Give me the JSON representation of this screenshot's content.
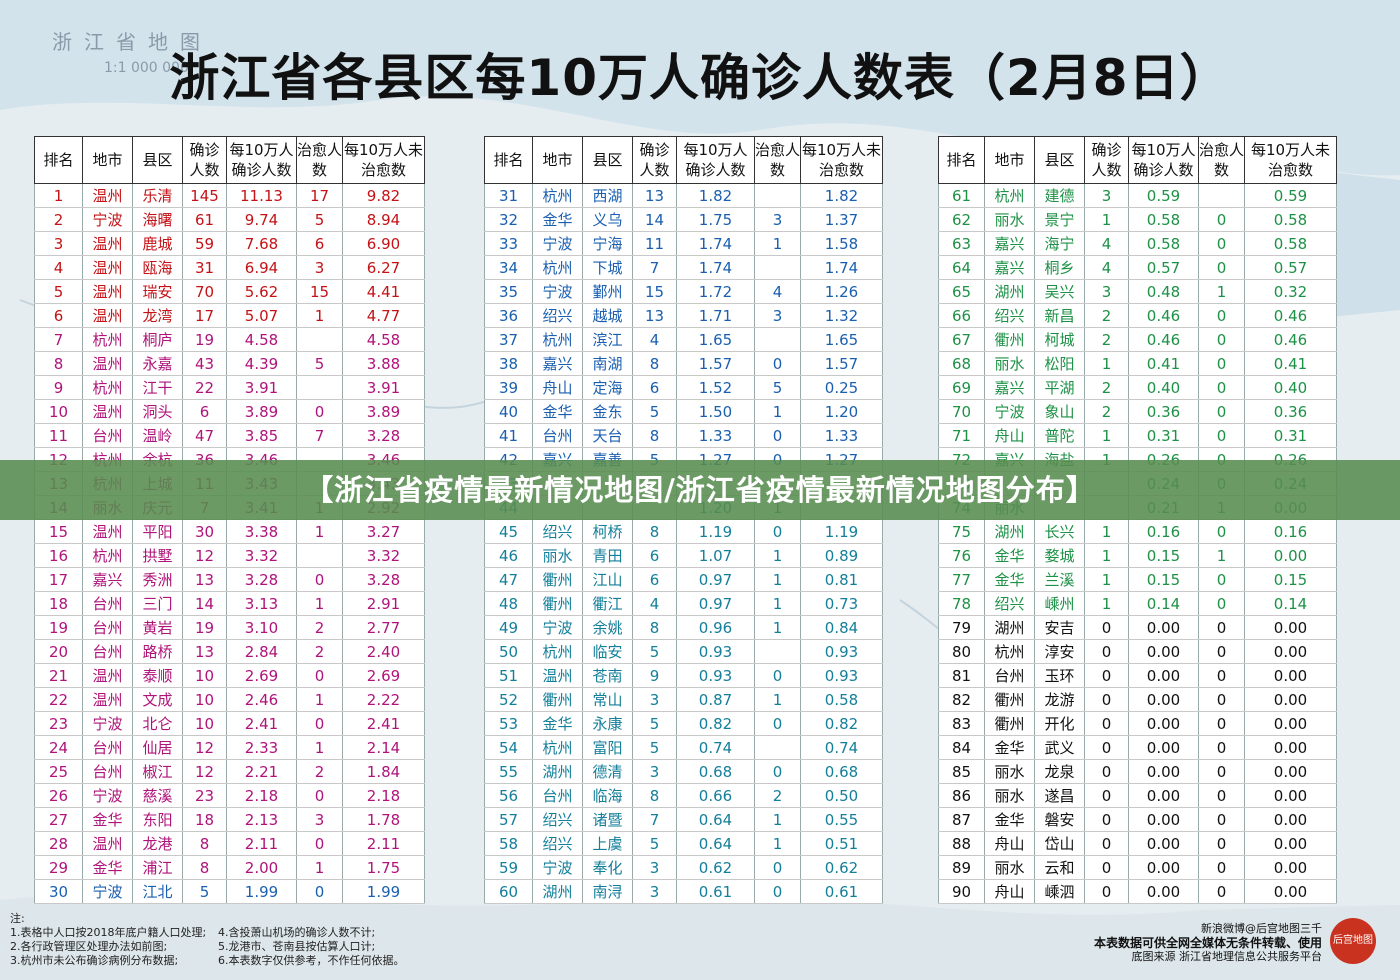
{
  "map": {
    "name": "浙江省地图",
    "scale": "1:1 000 000"
  },
  "title": "浙江省各县区每10万人确诊人数表（2月8日）",
  "headers": [
    "排名",
    "地市",
    "县区",
    "确诊人数",
    "每10万人确诊人数",
    "治愈人数",
    "每10万人未治愈数"
  ],
  "rows": [
    [
      "1",
      "温州",
      "乐清",
      "145",
      "11.13",
      "17",
      "9.82"
    ],
    [
      "2",
      "宁波",
      "海曙",
      "61",
      "9.74",
      "5",
      "8.94"
    ],
    [
      "3",
      "温州",
      "鹿城",
      "59",
      "7.68",
      "6",
      "6.90"
    ],
    [
      "4",
      "温州",
      "瓯海",
      "31",
      "6.94",
      "3",
      "6.27"
    ],
    [
      "5",
      "温州",
      "瑞安",
      "70",
      "5.62",
      "15",
      "4.41"
    ],
    [
      "6",
      "温州",
      "龙湾",
      "17",
      "5.07",
      "1",
      "4.77"
    ],
    [
      "7",
      "杭州",
      "桐庐",
      "19",
      "4.58",
      "",
      "4.58"
    ],
    [
      "8",
      "温州",
      "永嘉",
      "43",
      "4.39",
      "5",
      "3.88"
    ],
    [
      "9",
      "杭州",
      "江干",
      "22",
      "3.91",
      "",
      "3.91"
    ],
    [
      "10",
      "温州",
      "洞头",
      "6",
      "3.89",
      "0",
      "3.89"
    ],
    [
      "11",
      "台州",
      "温岭",
      "47",
      "3.85",
      "7",
      "3.28"
    ],
    [
      "12",
      "杭州",
      "余杭",
      "36",
      "3.46",
      "",
      "3.46"
    ],
    [
      "13",
      "杭州",
      "上城",
      "11",
      "3.43",
      "",
      "3.43"
    ],
    [
      "14",
      "丽水",
      "庆元",
      "7",
      "3.41",
      "1",
      "2.92"
    ],
    [
      "15",
      "温州",
      "平阳",
      "30",
      "3.38",
      "1",
      "3.27"
    ],
    [
      "16",
      "杭州",
      "拱墅",
      "12",
      "3.32",
      "",
      "3.32"
    ],
    [
      "17",
      "嘉兴",
      "秀洲",
      "13",
      "3.28",
      "0",
      "3.28"
    ],
    [
      "18",
      "台州",
      "三门",
      "14",
      "3.13",
      "1",
      "2.91"
    ],
    [
      "19",
      "台州",
      "黄岩",
      "19",
      "3.10",
      "2",
      "2.77"
    ],
    [
      "20",
      "台州",
      "路桥",
      "13",
      "2.84",
      "2",
      "2.40"
    ],
    [
      "21",
      "温州",
      "泰顺",
      "10",
      "2.69",
      "0",
      "2.69"
    ],
    [
      "22",
      "温州",
      "文成",
      "10",
      "2.46",
      "1",
      "2.22"
    ],
    [
      "23",
      "宁波",
      "北仑",
      "10",
      "2.41",
      "0",
      "2.41"
    ],
    [
      "24",
      "台州",
      "仙居",
      "12",
      "2.33",
      "1",
      "2.14"
    ],
    [
      "25",
      "台州",
      "椒江",
      "12",
      "2.21",
      "2",
      "1.84"
    ],
    [
      "26",
      "宁波",
      "慈溪",
      "23",
      "2.18",
      "0",
      "2.18"
    ],
    [
      "27",
      "金华",
      "东阳",
      "18",
      "2.13",
      "3",
      "1.78"
    ],
    [
      "28",
      "温州",
      "龙港",
      "8",
      "2.11",
      "0",
      "2.11"
    ],
    [
      "29",
      "金华",
      "浦江",
      "8",
      "2.00",
      "1",
      "1.75"
    ],
    [
      "30",
      "宁波",
      "江北",
      "5",
      "1.99",
      "0",
      "1.99"
    ],
    [
      "31",
      "杭州",
      "西湖",
      "13",
      "1.82",
      "",
      "1.82"
    ],
    [
      "32",
      "金华",
      "义乌",
      "14",
      "1.75",
      "3",
      "1.37"
    ],
    [
      "33",
      "宁波",
      "宁海",
      "11",
      "1.74",
      "1",
      "1.58"
    ],
    [
      "34",
      "杭州",
      "下城",
      "7",
      "1.74",
      "",
      "1.74"
    ],
    [
      "35",
      "宁波",
      "鄞州",
      "15",
      "1.72",
      "4",
      "1.26"
    ],
    [
      "36",
      "绍兴",
      "越城",
      "13",
      "1.71",
      "3",
      "1.32"
    ],
    [
      "37",
      "杭州",
      "滨江",
      "4",
      "1.65",
      "",
      "1.65"
    ],
    [
      "38",
      "嘉兴",
      "南湖",
      "8",
      "1.57",
      "0",
      "1.57"
    ],
    [
      "39",
      "舟山",
      "定海",
      "6",
      "1.52",
      "5",
      "0.25"
    ],
    [
      "40",
      "金华",
      "金东",
      "5",
      "1.50",
      "1",
      "1.20"
    ],
    [
      "41",
      "台州",
      "天台",
      "8",
      "1.33",
      "0",
      "1.33"
    ],
    [
      "42",
      "嘉兴",
      "嘉善",
      "5",
      "1.27",
      "0",
      "1.27"
    ],
    [
      "43",
      "",
      "",
      "",
      "",
      "",
      ""
    ],
    [
      "44",
      "",
      "",
      "",
      "1.20",
      "1",
      ""
    ],
    [
      "45",
      "绍兴",
      "柯桥",
      "8",
      "1.19",
      "0",
      "1.19"
    ],
    [
      "46",
      "丽水",
      "青田",
      "6",
      "1.07",
      "1",
      "0.89"
    ],
    [
      "47",
      "衢州",
      "江山",
      "6",
      "0.97",
      "1",
      "0.81"
    ],
    [
      "48",
      "衢州",
      "衢江",
      "4",
      "0.97",
      "1",
      "0.73"
    ],
    [
      "49",
      "宁波",
      "余姚",
      "8",
      "0.96",
      "1",
      "0.84"
    ],
    [
      "50",
      "杭州",
      "临安",
      "5",
      "0.93",
      "",
      "0.93"
    ],
    [
      "51",
      "温州",
      "苍南",
      "9",
      "0.93",
      "0",
      "0.93"
    ],
    [
      "52",
      "衢州",
      "常山",
      "3",
      "0.87",
      "1",
      "0.58"
    ],
    [
      "53",
      "金华",
      "永康",
      "5",
      "0.82",
      "0",
      "0.82"
    ],
    [
      "54",
      "杭州",
      "富阳",
      "5",
      "0.74",
      "",
      "0.74"
    ],
    [
      "55",
      "湖州",
      "德清",
      "3",
      "0.68",
      "0",
      "0.68"
    ],
    [
      "56",
      "台州",
      "临海",
      "8",
      "0.66",
      "2",
      "0.50"
    ],
    [
      "57",
      "绍兴",
      "诸暨",
      "7",
      "0.64",
      "1",
      "0.55"
    ],
    [
      "58",
      "绍兴",
      "上虞",
      "5",
      "0.64",
      "1",
      "0.51"
    ],
    [
      "59",
      "宁波",
      "奉化",
      "3",
      "0.62",
      "0",
      "0.62"
    ],
    [
      "60",
      "湖州",
      "南浔",
      "3",
      "0.61",
      "0",
      "0.61"
    ],
    [
      "61",
      "杭州",
      "建德",
      "3",
      "0.59",
      "",
      "0.59"
    ],
    [
      "62",
      "丽水",
      "景宁",
      "1",
      "0.58",
      "0",
      "0.58"
    ],
    [
      "63",
      "嘉兴",
      "海宁",
      "4",
      "0.58",
      "0",
      "0.58"
    ],
    [
      "64",
      "嘉兴",
      "桐乡",
      "4",
      "0.57",
      "0",
      "0.57"
    ],
    [
      "65",
      "湖州",
      "吴兴",
      "3",
      "0.48",
      "1",
      "0.32"
    ],
    [
      "66",
      "绍兴",
      "新昌",
      "2",
      "0.46",
      "0",
      "0.46"
    ],
    [
      "67",
      "衢州",
      "柯城",
      "2",
      "0.46",
      "0",
      "0.46"
    ],
    [
      "68",
      "丽水",
      "松阳",
      "1",
      "0.41",
      "0",
      "0.41"
    ],
    [
      "69",
      "嘉兴",
      "平湖",
      "2",
      "0.40",
      "0",
      "0.40"
    ],
    [
      "70",
      "宁波",
      "象山",
      "2",
      "0.36",
      "0",
      "0.36"
    ],
    [
      "71",
      "舟山",
      "普陀",
      "1",
      "0.31",
      "0",
      "0.31"
    ],
    [
      "72",
      "嘉兴",
      "海盐",
      "1",
      "0.26",
      "0",
      "0.26"
    ],
    [
      "73",
      "",
      "",
      "",
      "0.24",
      "0",
      "0.24"
    ],
    [
      "74",
      "丽水",
      "",
      "",
      "0.21",
      "1",
      "0.00"
    ],
    [
      "75",
      "湖州",
      "长兴",
      "1",
      "0.16",
      "0",
      "0.16"
    ],
    [
      "76",
      "金华",
      "婺城",
      "1",
      "0.15",
      "1",
      "0.00"
    ],
    [
      "77",
      "金华",
      "兰溪",
      "1",
      "0.15",
      "0",
      "0.15"
    ],
    [
      "78",
      "绍兴",
      "嵊州",
      "1",
      "0.14",
      "0",
      "0.14"
    ],
    [
      "79",
      "湖州",
      "安吉",
      "0",
      "0.00",
      "0",
      "0.00"
    ],
    [
      "80",
      "杭州",
      "淳安",
      "0",
      "0.00",
      "0",
      "0.00"
    ],
    [
      "81",
      "台州",
      "玉环",
      "0",
      "0.00",
      "0",
      "0.00"
    ],
    [
      "82",
      "衢州",
      "龙游",
      "0",
      "0.00",
      "0",
      "0.00"
    ],
    [
      "83",
      "衢州",
      "开化",
      "0",
      "0.00",
      "0",
      "0.00"
    ],
    [
      "84",
      "金华",
      "武义",
      "0",
      "0.00",
      "0",
      "0.00"
    ],
    [
      "85",
      "丽水",
      "龙泉",
      "0",
      "0.00",
      "0",
      "0.00"
    ],
    [
      "86",
      "丽水",
      "遂昌",
      "0",
      "0.00",
      "0",
      "0.00"
    ],
    [
      "87",
      "金华",
      "磐安",
      "0",
      "0.00",
      "0",
      "0.00"
    ],
    [
      "88",
      "舟山",
      "岱山",
      "0",
      "0.00",
      "0",
      "0.00"
    ],
    [
      "89",
      "丽水",
      "云和",
      "0",
      "0.00",
      "0",
      "0.00"
    ],
    [
      "90",
      "舟山",
      "嵊泗",
      "0",
      "0.00",
      "0",
      "0.00"
    ]
  ],
  "row_colors": {
    "red": "#c41216",
    "pink": "#b0137a",
    "blue": "#1a5fb0",
    "teal": "#137f9a",
    "green": "#1d9146",
    "black": "#111111"
  },
  "banner": "【浙江省疫情最新情况地图/浙江省疫情最新情况地图分布】",
  "notes": {
    "heading": "注:",
    "lines": [
      "1.表格中人口按2018年底户籍人口处理;",
      "2.各行政管理区处理办法如前图;",
      "3.杭州市未公布确诊病例分布数据;"
    ],
    "lines2": [
      "4.含投萧山机场的确诊人数不计;",
      "5.龙港市、苍南县按估算人口计;",
      "6.本表数字仅供参考，不作任何依据。"
    ]
  },
  "footer": {
    "weibo": "新浪微博@后宫地图三千",
    "copyright": "本表数据可供全网全媒体无条件转载、使用",
    "source": "底图来源  浙江省地理信息公共服务平台",
    "seal": "后宫地图"
  }
}
